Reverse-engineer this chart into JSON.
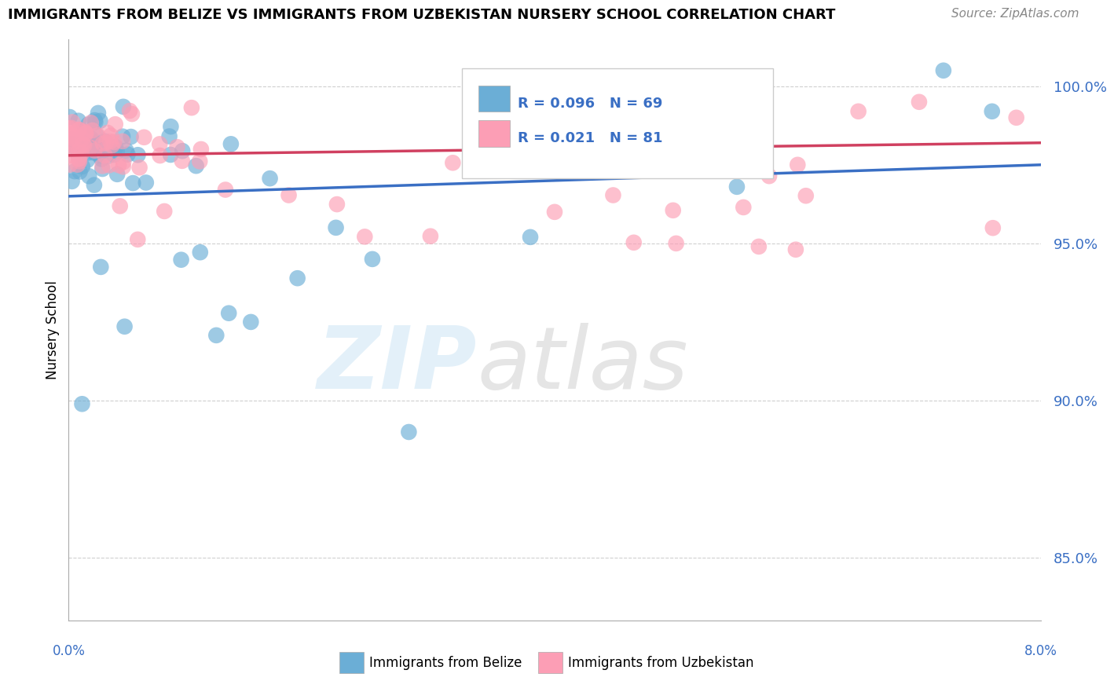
{
  "title": "IMMIGRANTS FROM BELIZE VS IMMIGRANTS FROM UZBEKISTAN NURSERY SCHOOL CORRELATION CHART",
  "source": "Source: ZipAtlas.com",
  "ylabel": "Nursery School",
  "xlim": [
    0.0,
    8.0
  ],
  "ylim": [
    83.0,
    101.5
  ],
  "yticks": [
    85.0,
    90.0,
    95.0,
    100.0
  ],
  "ytick_labels": [
    "85.0%",
    "90.0%",
    "95.0%",
    "100.0%"
  ],
  "legend_r_blue": "0.096",
  "legend_n_blue": "69",
  "legend_r_pink": "0.021",
  "legend_n_pink": "81",
  "color_blue": "#6baed6",
  "color_pink": "#fc9eb5",
  "color_blue_line": "#3a6fc4",
  "color_pink_line": "#d04060",
  "color_blue_text": "#3a6fc4",
  "color_grid": "#bbbbbb",
  "label_belize": "Immigrants from Belize",
  "label_uzbekistan": "Immigrants from Uzbekistan"
}
